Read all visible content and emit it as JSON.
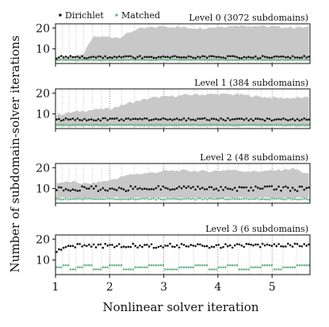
{
  "chart_data": {
    "type": "scatter",
    "xlabel": "Nonlinear solver iteration",
    "ylabel": "Number of subdomain-solver iterations",
    "legend": {
      "placement": "top-left",
      "entries": [
        {
          "name": "Dirichlet",
          "color": "#111111"
        },
        {
          "name": "Matched",
          "color": "#6fb98a"
        }
      ]
    },
    "band_color": "#c8c8c8",
    "x_ticks": [
      1,
      2,
      3,
      4,
      5
    ],
    "x_tick_labels": [
      "1",
      "2",
      "3",
      "4",
      "5"
    ],
    "xlim": [
      1,
      5.7
    ],
    "nonlinear_starts": [
      1,
      1.12,
      1.25,
      1.38,
      1.52,
      1.68,
      1.85,
      2,
      2.22,
      2.46,
      2.72,
      3,
      3.28,
      3.55,
      3.8,
      4,
      4.18,
      4.38,
      4.58,
      4.8,
      5,
      5.2,
      5.45,
      5.7
    ],
    "panels": [
      {
        "title": "Level 0 (3072 subdomains)",
        "ylim": [
          3,
          22
        ],
        "yticks": [
          10,
          20
        ],
        "ytick_labels": [
          "10",
          "20"
        ],
        "dirichlet_base": 6.0,
        "dirichlet_amp": 0.6,
        "matched_base": 4.8,
        "matched_amp": 0.3,
        "band_low_base": 4.2,
        "band_high": [
          [
            1,
            5.5
          ],
          [
            1.5,
            6.8
          ],
          [
            1.7,
            15.8
          ],
          [
            2.2,
            15.6
          ],
          [
            2.5,
            19.5
          ],
          [
            3.0,
            20.8
          ],
          [
            3.4,
            20.2
          ],
          [
            3.7,
            20.0
          ],
          [
            4.0,
            20.5
          ],
          [
            4.4,
            21.2
          ],
          [
            4.8,
            20.8
          ],
          [
            5.2,
            20.4
          ],
          [
            5.7,
            20.2
          ]
        ]
      },
      {
        "title": "Level 1 (384 subdomains)",
        "ylim": [
          3,
          22
        ],
        "yticks": [
          10,
          20
        ],
        "ytick_labels": [
          "10",
          "20"
        ],
        "dirichlet_base": 7.4,
        "dirichlet_amp": 0.6,
        "matched_base": 4.8,
        "matched_amp": 0.2,
        "band_low_base": 4.0,
        "band_high": [
          [
            1,
            9.5
          ],
          [
            1.3,
            10.8
          ],
          [
            1.6,
            11.8
          ],
          [
            2.0,
            12.5
          ],
          [
            2.4,
            15.5
          ],
          [
            2.8,
            17.8
          ],
          [
            3.0,
            18.2
          ],
          [
            3.5,
            19.2
          ],
          [
            4.0,
            19.5
          ],
          [
            4.4,
            19.3
          ],
          [
            4.8,
            18.2
          ],
          [
            5.2,
            17.6
          ],
          [
            5.7,
            17.8
          ]
        ]
      },
      {
        "title": "Level 2 (48 subdomains)",
        "ylim": [
          3,
          22
        ],
        "yticks": [
          10,
          20
        ],
        "ytick_labels": [
          "10",
          "20"
        ],
        "dirichlet_base": 10.0,
        "dirichlet_amp": 1.2,
        "matched_base": 5.0,
        "matched_amp": 0.6,
        "band_low_base": 5.6,
        "band_high": [
          [
            1,
            12.8
          ],
          [
            1.3,
            13.2
          ],
          [
            1.6,
            12.2
          ],
          [
            2.0,
            14.0
          ],
          [
            2.4,
            16.8
          ],
          [
            2.8,
            17.6
          ],
          [
            3.0,
            18.4
          ],
          [
            3.4,
            18.6
          ],
          [
            3.8,
            18.2
          ],
          [
            4.2,
            19.0
          ],
          [
            4.6,
            18.2
          ],
          [
            5.0,
            18.5
          ],
          [
            5.4,
            19.6
          ],
          [
            5.7,
            16.5
          ]
        ]
      },
      {
        "title": "Level 3 (6 subdomains)",
        "ylim": [
          3,
          22
        ],
        "yticks": [
          10,
          20
        ],
        "ytick_labels": [
          "10",
          "20"
        ],
        "dirichlet_base": 16.8,
        "dirichlet_amp": 1.0,
        "matched_base": 6.5,
        "matched_amp": 1.0,
        "band_low_base": null,
        "band_high": []
      }
    ]
  }
}
